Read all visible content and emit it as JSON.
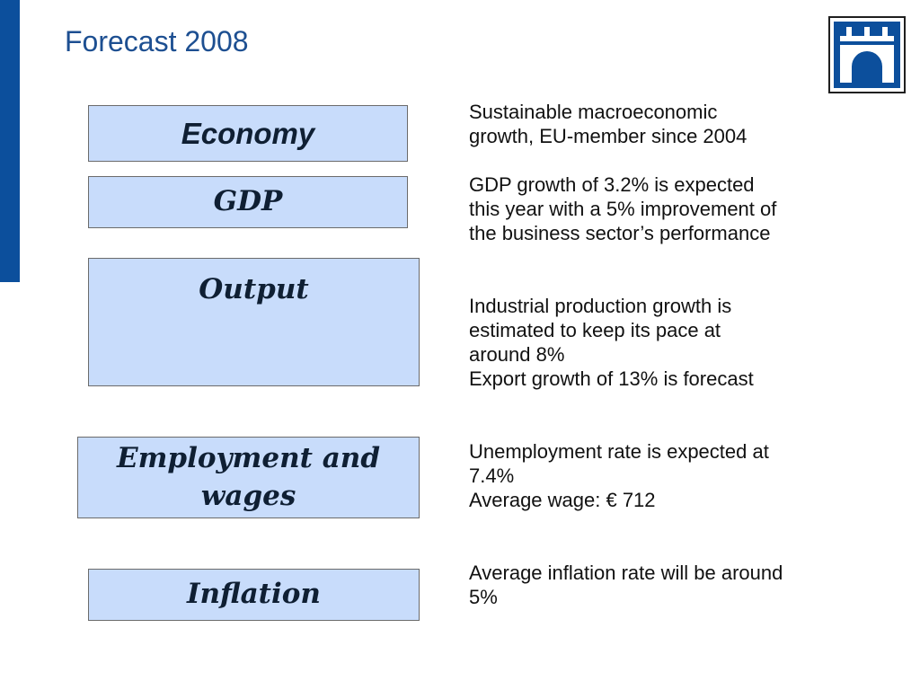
{
  "slide": {
    "title": "Forecast 2008",
    "topics": {
      "economy": {
        "label": "Economy",
        "lines": [
          "Sustainable macroeconomic",
          "growth, EU-member since 2004"
        ]
      },
      "gdp": {
        "label": "GDP",
        "lines": [
          "GDP growth of 3.2% is expected",
          "this year with a 5% improvement of",
          "the business sector’s performance"
        ]
      },
      "output": {
        "label": "Output",
        "lines": [
          "Industrial production growth is",
          "estimated to keep its pace at",
          "around 8%",
          "Export growth of 13% is forecast"
        ]
      },
      "employment": {
        "label_line1": "Employment and",
        "label_line2": "wages",
        "lines": [
          "Unemployment rate is expected at",
          "7.4%",
          "Average wage: € 712"
        ]
      },
      "inflation": {
        "label": "Inflation",
        "lines": [
          "Average inflation rate will be around",
          "5%"
        ]
      }
    },
    "colors": {
      "accent": "#0c4f9c",
      "box_fill": "#c8dcfb",
      "title": "#1d4f91"
    },
    "logo_icon": "bridge-logo-icon"
  }
}
